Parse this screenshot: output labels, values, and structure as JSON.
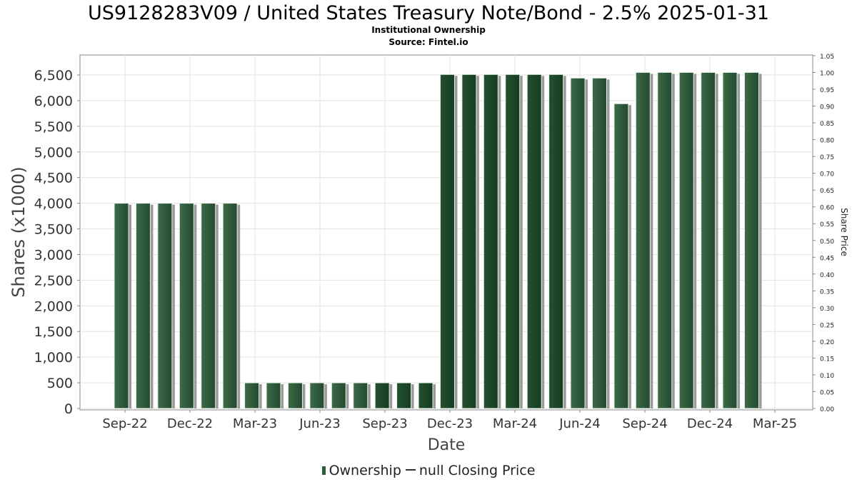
{
  "chart_data": {
    "type": "bar",
    "title": "US9128283V09 / United States Treasury Note/Bond - 2.5% 2025-01-31",
    "subtitle": [
      "Institutional Ownership",
      "Source: Fintel.io"
    ],
    "xlabel": "Date",
    "ylabel": "Shares (x1000)",
    "y2label": "Share Price",
    "ylim": [
      0,
      6500
    ],
    "y_ticks": [
      "0",
      "500",
      "1,000",
      "1,500",
      "2,000",
      "2,500",
      "3,000",
      "3,500",
      "4,000",
      "4,500",
      "5,000",
      "5,500",
      "6,000",
      "6,500"
    ],
    "y2lim": [
      0,
      1.05
    ],
    "y2_ticks": [
      "0.00",
      "0.05",
      "0.10",
      "0.15",
      "0.20",
      "0.25",
      "0.30",
      "0.35",
      "0.40",
      "0.45",
      "0.50",
      "0.55",
      "0.60",
      "0.65",
      "0.70",
      "0.75",
      "0.80",
      "0.85",
      "0.90",
      "0.95",
      "1.00",
      "1.05"
    ],
    "x_ticks": [
      "Sep-22",
      "Dec-22",
      "Mar-23",
      "Jun-23",
      "Sep-23",
      "Dec-23",
      "Mar-24",
      "Jun-24",
      "Sep-24",
      "Dec-24",
      "Mar-25"
    ],
    "grid": true,
    "legend_position": "bottom-center",
    "series": [
      {
        "name": "Ownership",
        "color": "#2f5e3a",
        "values": [
          4000,
          4000,
          4000,
          4000,
          4000,
          4000,
          500,
          500,
          500,
          500,
          500,
          500,
          500,
          500,
          500,
          6510,
          6510,
          6510,
          6510,
          6510,
          6510,
          6440,
          6440,
          5940,
          6550,
          6550,
          6550,
          6550,
          6550,
          6550
        ]
      }
    ],
    "legend": {
      "bar_label": "Ownership",
      "line_label": "null Closing Price"
    }
  }
}
